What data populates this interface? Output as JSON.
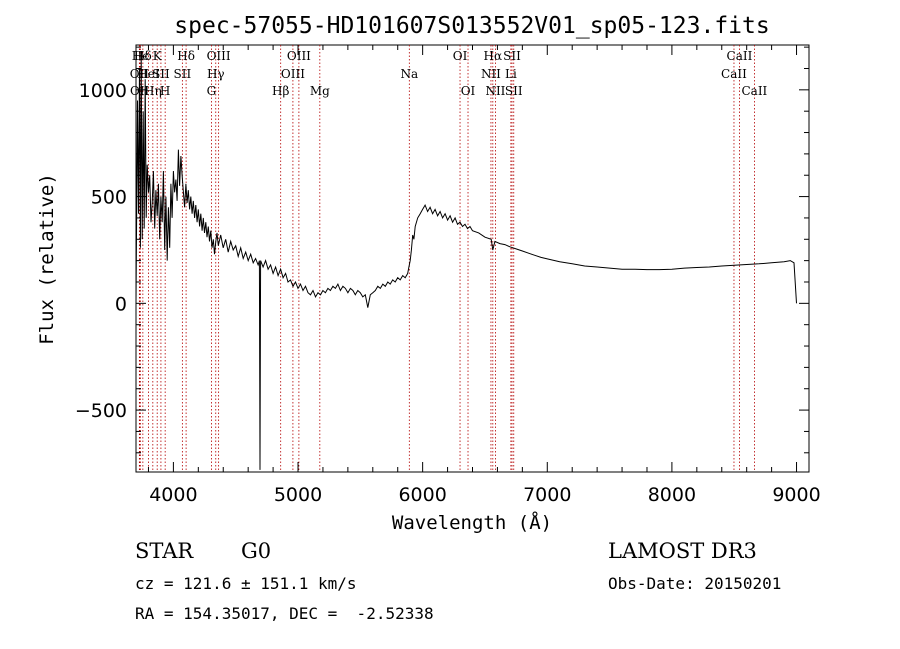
{
  "chart_data": {
    "type": "line",
    "title": "spec-57055-HD101607S013552V01_sp05-123.fits",
    "xlabel": "Wavelength (Å)",
    "ylabel": "Flux (relative)",
    "xlim": [
      3700,
      9100
    ],
    "ylim": [
      -790,
      1210
    ],
    "xticks": [
      4000,
      5000,
      6000,
      7000,
      8000,
      9000
    ],
    "yticks": [
      -500,
      0,
      500,
      1000
    ],
    "grid": false,
    "line_color": "#000000",
    "marker_line_color": "#b30000",
    "series": [
      {
        "points": [
          [
            3700,
            0
          ],
          [
            3705,
            380
          ],
          [
            3712,
            950
          ],
          [
            3720,
            420
          ],
          [
            3728,
            1100
          ],
          [
            3735,
            260
          ],
          [
            3742,
            1180
          ],
          [
            3750,
            300
          ],
          [
            3758,
            900
          ],
          [
            3766,
            350
          ],
          [
            3774,
            1050
          ],
          [
            3782,
            400
          ],
          [
            3790,
            650
          ],
          [
            3800,
            520
          ],
          [
            3810,
            600
          ],
          [
            3820,
            380
          ],
          [
            3830,
            470
          ],
          [
            3840,
            620
          ],
          [
            3850,
            350
          ],
          [
            3860,
            530
          ],
          [
            3870,
            410
          ],
          [
            3880,
            560
          ],
          [
            3890,
            300
          ],
          [
            3900,
            500
          ],
          [
            3910,
            380
          ],
          [
            3920,
            620
          ],
          [
            3930,
            250
          ],
          [
            3940,
            500
          ],
          [
            3950,
            200
          ],
          [
            3960,
            450
          ],
          [
            3970,
            260
          ],
          [
            3980,
            560
          ],
          [
            3990,
            400
          ],
          [
            4000,
            620
          ],
          [
            4010,
            520
          ],
          [
            4020,
            580
          ],
          [
            4030,
            480
          ],
          [
            4040,
            720
          ],
          [
            4050,
            550
          ],
          [
            4060,
            690
          ],
          [
            4070,
            600
          ],
          [
            4080,
            520
          ],
          [
            4090,
            450
          ],
          [
            4100,
            560
          ],
          [
            4110,
            470
          ],
          [
            4120,
            530
          ],
          [
            4130,
            440
          ],
          [
            4140,
            500
          ],
          [
            4150,
            420
          ],
          [
            4160,
            480
          ],
          [
            4170,
            400
          ],
          [
            4180,
            460
          ],
          [
            4190,
            380
          ],
          [
            4200,
            440
          ],
          [
            4210,
            360
          ],
          [
            4220,
            420
          ],
          [
            4230,
            340
          ],
          [
            4240,
            400
          ],
          [
            4250,
            330
          ],
          [
            4260,
            380
          ],
          [
            4270,
            310
          ],
          [
            4280,
            360
          ],
          [
            4290,
            290
          ],
          [
            4300,
            340
          ],
          [
            4310,
            260
          ],
          [
            4320,
            300
          ],
          [
            4330,
            230
          ],
          [
            4340,
            290
          ],
          [
            4350,
            330
          ],
          [
            4360,
            270
          ],
          [
            4380,
            320
          ],
          [
            4400,
            260
          ],
          [
            4420,
            300
          ],
          [
            4440,
            240
          ],
          [
            4460,
            290
          ],
          [
            4480,
            250
          ],
          [
            4500,
            270
          ],
          [
            4520,
            220
          ],
          [
            4540,
            260
          ],
          [
            4560,
            210
          ],
          [
            4580,
            240
          ],
          [
            4600,
            200
          ],
          [
            4620,
            230
          ],
          [
            4640,
            190
          ],
          [
            4660,
            210
          ],
          [
            4680,
            180
          ],
          [
            4690,
            200
          ],
          [
            4695,
            -780
          ],
          [
            4700,
            200
          ],
          [
            4720,
            170
          ],
          [
            4740,
            200
          ],
          [
            4760,
            160
          ],
          [
            4780,
            180
          ],
          [
            4800,
            140
          ],
          [
            4820,
            170
          ],
          [
            4840,
            130
          ],
          [
            4860,
            160
          ],
          [
            4880,
            120
          ],
          [
            4900,
            140
          ],
          [
            4920,
            100
          ],
          [
            4940,
            110
          ],
          [
            4960,
            80
          ],
          [
            4980,
            100
          ],
          [
            5000,
            70
          ],
          [
            5020,
            90
          ],
          [
            5040,
            60
          ],
          [
            5060,
            80
          ],
          [
            5080,
            50
          ],
          [
            5100,
            40
          ],
          [
            5120,
            60
          ],
          [
            5140,
            30
          ],
          [
            5160,
            50
          ],
          [
            5180,
            40
          ],
          [
            5200,
            60
          ],
          [
            5220,
            50
          ],
          [
            5240,
            70
          ],
          [
            5260,
            60
          ],
          [
            5280,
            80
          ],
          [
            5300,
            70
          ],
          [
            5320,
            90
          ],
          [
            5340,
            60
          ],
          [
            5360,
            80
          ],
          [
            5380,
            70
          ],
          [
            5400,
            50
          ],
          [
            5420,
            70
          ],
          [
            5440,
            60
          ],
          [
            5460,
            40
          ],
          [
            5480,
            60
          ],
          [
            5500,
            50
          ],
          [
            5520,
            30
          ],
          [
            5540,
            40
          ],
          [
            5560,
            -20
          ],
          [
            5580,
            40
          ],
          [
            5600,
            50
          ],
          [
            5620,
            60
          ],
          [
            5640,
            80
          ],
          [
            5660,
            70
          ],
          [
            5680,
            90
          ],
          [
            5700,
            80
          ],
          [
            5720,
            100
          ],
          [
            5740,
            90
          ],
          [
            5760,
            110
          ],
          [
            5780,
            100
          ],
          [
            5800,
            120
          ],
          [
            5820,
            110
          ],
          [
            5840,
            130
          ],
          [
            5860,
            120
          ],
          [
            5880,
            140
          ],
          [
            5890,
            170
          ],
          [
            5900,
            200
          ],
          [
            5910,
            250
          ],
          [
            5920,
            320
          ],
          [
            5930,
            300
          ],
          [
            5940,
            360
          ],
          [
            5960,
            400
          ],
          [
            5980,
            420
          ],
          [
            6000,
            440
          ],
          [
            6020,
            460
          ],
          [
            6040,
            430
          ],
          [
            6060,
            450
          ],
          [
            6080,
            420
          ],
          [
            6100,
            440
          ],
          [
            6120,
            410
          ],
          [
            6140,
            430
          ],
          [
            6160,
            400
          ],
          [
            6180,
            420
          ],
          [
            6200,
            390
          ],
          [
            6220,
            410
          ],
          [
            6240,
            380
          ],
          [
            6260,
            400
          ],
          [
            6280,
            370
          ],
          [
            6300,
            380
          ],
          [
            6320,
            360
          ],
          [
            6340,
            370
          ],
          [
            6360,
            350
          ],
          [
            6380,
            360
          ],
          [
            6400,
            340
          ],
          [
            6450,
            330
          ],
          [
            6500,
            310
          ],
          [
            6550,
            300
          ],
          [
            6563,
            250
          ],
          [
            6580,
            290
          ],
          [
            6620,
            280
          ],
          [
            6660,
            275
          ],
          [
            6700,
            265
          ],
          [
            6750,
            255
          ],
          [
            6800,
            245
          ],
          [
            6850,
            235
          ],
          [
            6900,
            225
          ],
          [
            6950,
            215
          ],
          [
            7000,
            208
          ],
          [
            7100,
            195
          ],
          [
            7200,
            185
          ],
          [
            7300,
            175
          ],
          [
            7400,
            170
          ],
          [
            7500,
            165
          ],
          [
            7600,
            160
          ],
          [
            7700,
            160
          ],
          [
            7800,
            158
          ],
          [
            7900,
            158
          ],
          [
            8000,
            160
          ],
          [
            8100,
            165
          ],
          [
            8200,
            168
          ],
          [
            8300,
            170
          ],
          [
            8400,
            175
          ],
          [
            8500,
            178
          ],
          [
            8600,
            182
          ],
          [
            8700,
            185
          ],
          [
            8800,
            190
          ],
          [
            8900,
            195
          ],
          [
            8950,
            200
          ],
          [
            8980,
            190
          ],
          [
            9000,
            0
          ]
        ]
      }
    ],
    "lines": [
      {
        "name": "Hϵ",
        "x": 3735,
        "row": 0,
        "dy": 0
      },
      {
        "name": "OII",
        "x": 3727,
        "row": 1,
        "dy": 0
      },
      {
        "name": "OII",
        "x": 3729,
        "row": 2,
        "dy": 0
      },
      {
        "name": "Hδ",
        "x": 3755,
        "row": 0,
        "dy": 0
      },
      {
        "name": "HeI",
        "x": 3800,
        "row": 1,
        "dy": 0
      },
      {
        "name": "Hη",
        "x": 3835,
        "row": 2,
        "dy": 0
      },
      {
        "name": "K",
        "x": 3870,
        "row": 0,
        "dy": 0
      },
      {
        "name": "SII",
        "x": 3900,
        "row": 1,
        "dy": 0
      },
      {
        "name": "H",
        "x": 3934,
        "row": 2,
        "dy": 0
      },
      {
        "name": "Hδ",
        "x": 4102,
        "row": 0,
        "dy": 0
      },
      {
        "name": "SII",
        "x": 4072,
        "row": 1,
        "dy": 0
      },
      {
        "name": "OIII",
        "x": 4363,
        "row": 0,
        "dy": 0
      },
      {
        "name": "Hγ",
        "x": 4340,
        "row": 1,
        "dy": 0
      },
      {
        "name": "G",
        "x": 4305,
        "row": 2,
        "dy": 0
      },
      {
        "name": "OIII",
        "x": 5007,
        "row": 0,
        "dy": 0
      },
      {
        "name": "OIII",
        "x": 4959,
        "row": 1,
        "dy": 0
      },
      {
        "name": "Hβ",
        "x": 4861,
        "row": 2,
        "dy": 0
      },
      {
        "name": "Mg",
        "x": 5175,
        "row": 2,
        "dy": 0
      },
      {
        "name": "Na",
        "x": 5893,
        "row": 1,
        "dy": 0
      },
      {
        "name": "OI",
        "x": 6300,
        "row": 0,
        "dy": 0
      },
      {
        "name": "OI",
        "x": 6364,
        "row": 2,
        "dy": 0
      },
      {
        "name": "Hα",
        "x": 6563,
        "row": 0,
        "dy": 0
      },
      {
        "name": "NII",
        "x": 6548,
        "row": 1,
        "dy": 0
      },
      {
        "name": "NII",
        "x": 6584,
        "row": 2,
        "dy": 0
      },
      {
        "name": "SII",
        "x": 6717,
        "row": 0,
        "dy": 0
      },
      {
        "name": "Li",
        "x": 6708,
        "row": 1,
        "dy": 0
      },
      {
        "name": "SII",
        "x": 6731,
        "row": 2,
        "dy": 0
      },
      {
        "name": "CaII",
        "x": 8542,
        "row": 0,
        "dy": 0
      },
      {
        "name": "CaII",
        "x": 8498,
        "row": 1,
        "dy": 0
      },
      {
        "name": "CaII",
        "x": 8662,
        "row": 2,
        "dy": 0
      }
    ]
  },
  "info": {
    "class": "STAR",
    "subclass": "G0",
    "survey": "LAMOST DR3",
    "cz": "cz = 121.6 ± 151.1 km/s",
    "obs_date": "Obs-Date: 20150201",
    "radec": "RA = 154.35017, DEC =  -2.52338"
  }
}
